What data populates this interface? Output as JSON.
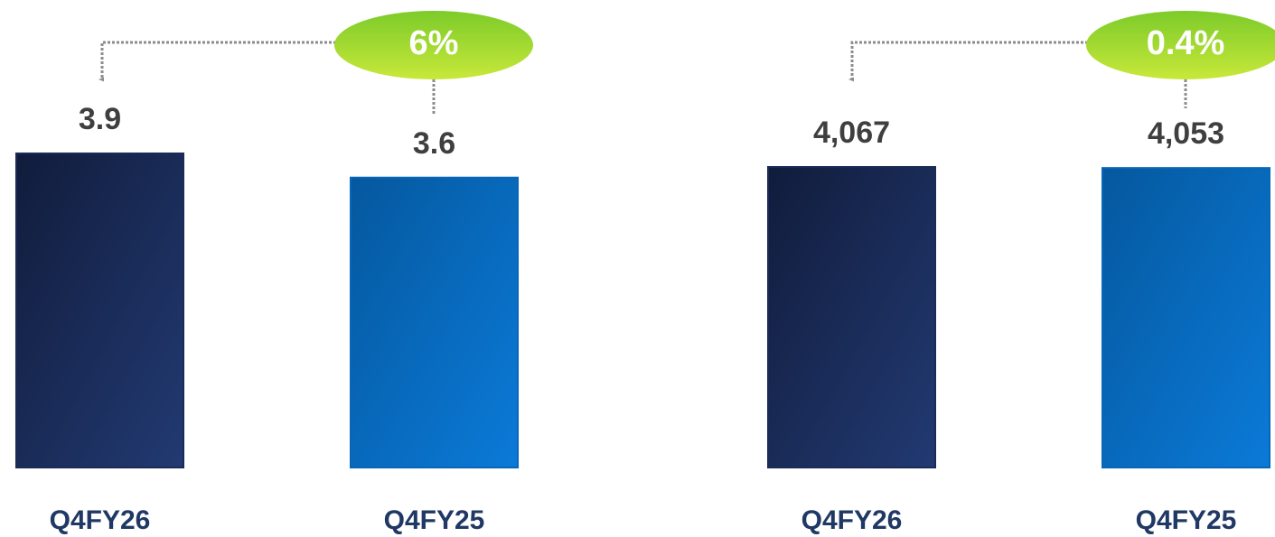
{
  "chart_data": [
    {
      "type": "bar",
      "categories": [
        "Q4FY26",
        "Q4FY25"
      ],
      "values": [
        3.9,
        3.6
      ],
      "colors": [
        "#1a2b57",
        "#0866b8"
      ],
      "annotation": "6%"
    },
    {
      "type": "bar",
      "categories": [
        "Q4FY26",
        "Q4FY25"
      ],
      "values": [
        4067,
        4053
      ],
      "value_labels": [
        "4,067",
        "4,053"
      ],
      "colors": [
        "#1a2b57",
        "#0866b8"
      ],
      "annotation": "0.4%"
    }
  ]
}
